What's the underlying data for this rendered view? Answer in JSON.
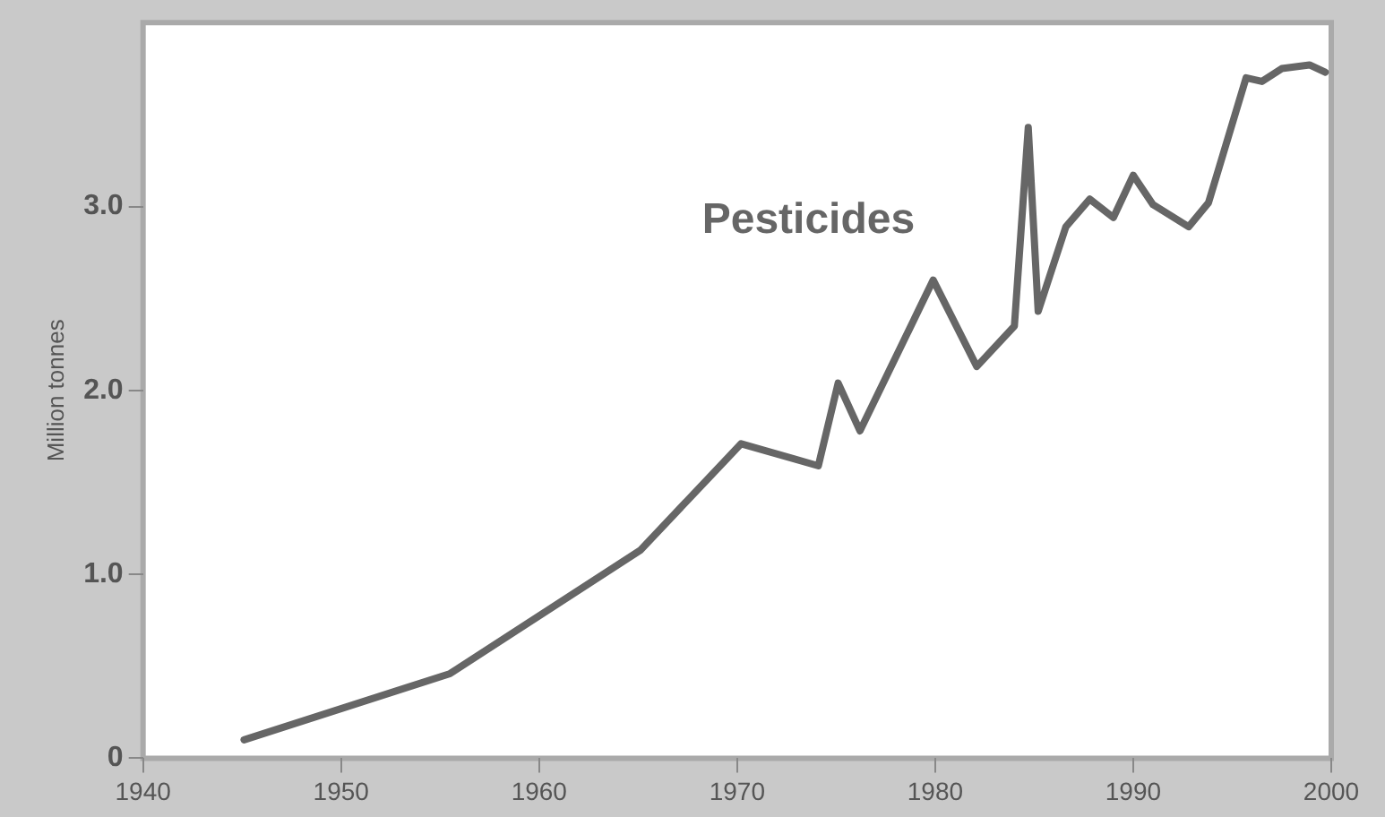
{
  "chart_data": {
    "type": "line",
    "ylabel": "Million tonnes",
    "x": [
      1945.1,
      1955.5,
      1965.1,
      1970.2,
      1974.1,
      1975.1,
      1976.2,
      1979.9,
      1982.1,
      1984.0,
      1984.7,
      1985.2,
      1986.6,
      1987.8,
      1989.0,
      1990.0,
      1991.0,
      1992.8,
      1993.8,
      1995.7,
      1996.5,
      1997.5,
      1998.9,
      1999.7
    ],
    "series": [
      {
        "name": "Pesticides",
        "color": "#666666",
        "values": [
          0.1,
          0.46,
          1.13,
          1.71,
          1.59,
          2.04,
          1.78,
          2.6,
          2.13,
          2.35,
          3.43,
          2.43,
          2.89,
          3.04,
          2.94,
          3.17,
          3.01,
          2.89,
          3.02,
          3.7,
          3.68,
          3.75,
          3.77,
          3.73
        ]
      }
    ],
    "xlim": [
      1940,
      2000
    ],
    "xticks": [
      1940,
      1950,
      1960,
      1970,
      1980,
      1990,
      2000
    ],
    "ylim": [
      0,
      4
    ],
    "yticks": [
      0,
      {
        "value": 1,
        "label": "1.0"
      },
      {
        "value": 2,
        "label": "2.0"
      },
      {
        "value": 3,
        "label": "3.0"
      }
    ],
    "grid": false,
    "legend": false,
    "marker": "none",
    "line_style": "solid"
  }
}
